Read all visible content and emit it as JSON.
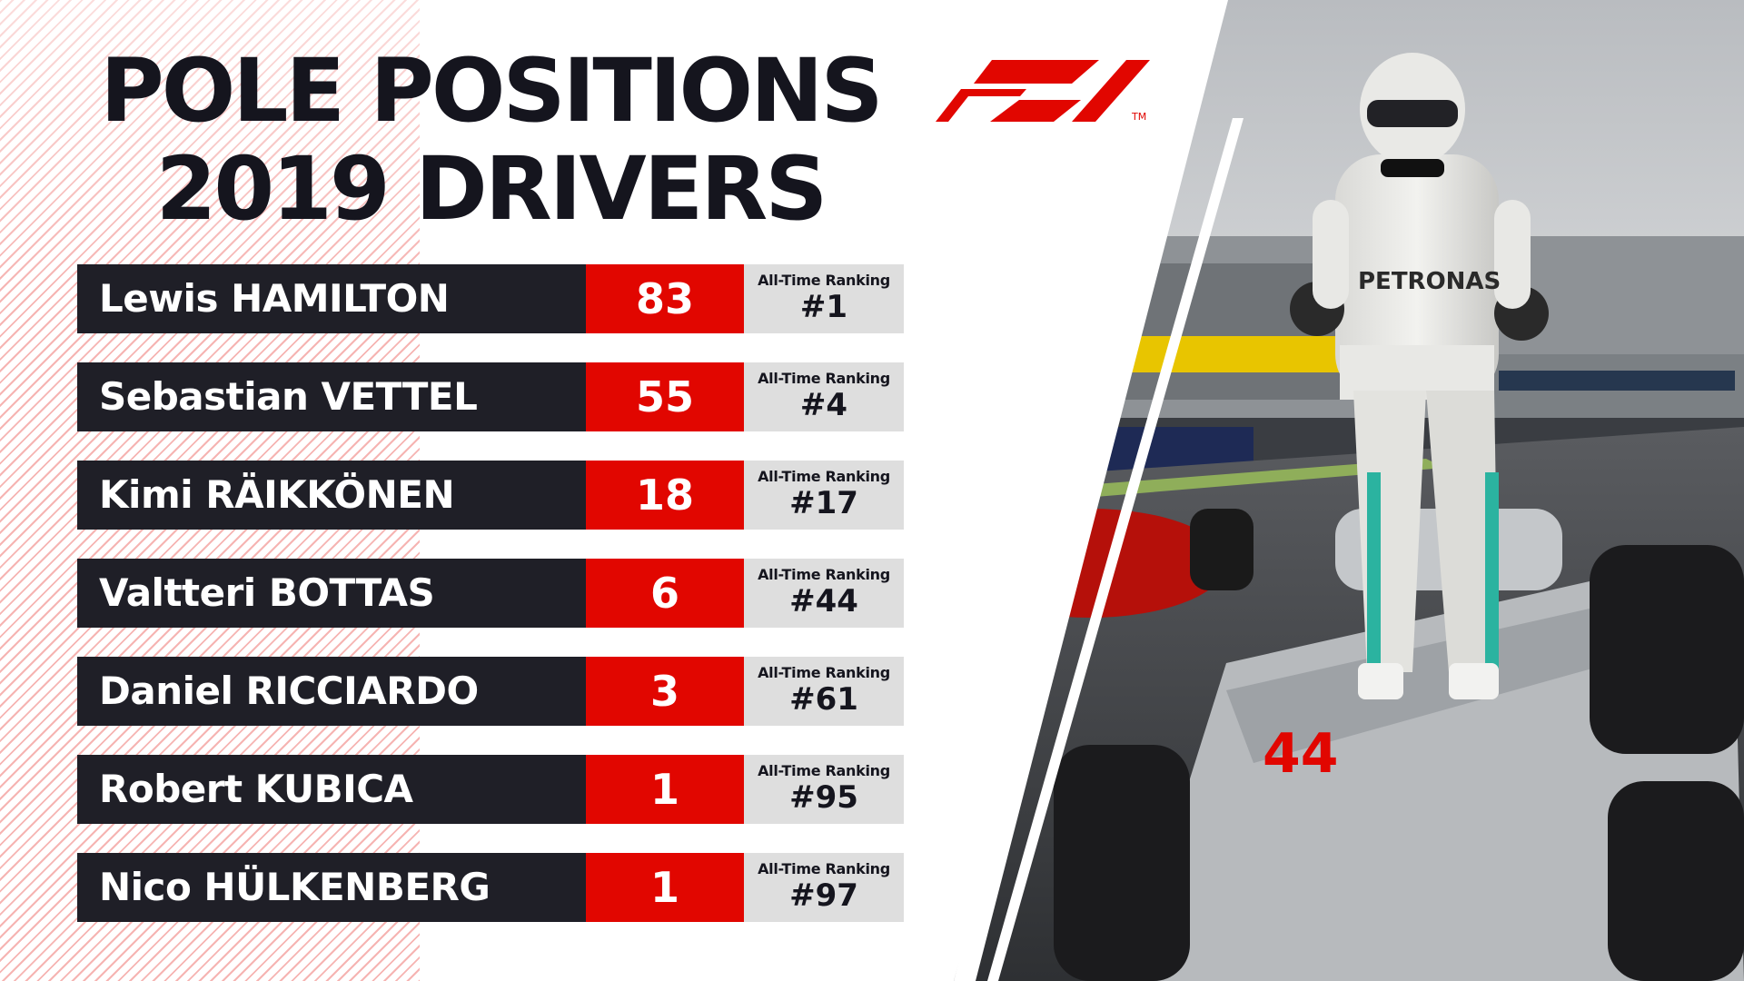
{
  "header": {
    "title_line1": "POLE POSITIONS",
    "title_line2": "2019 DRIVERS"
  },
  "logo": {
    "icon": "f1-logo-icon",
    "trademark": "TM",
    "color": "#e10600"
  },
  "table": {
    "rank_label": "All-Time Ranking",
    "rows": [
      {
        "driver": "Lewis HAMILTON",
        "poles": "83",
        "ranking": "#1"
      },
      {
        "driver": "Sebastian VETTEL",
        "poles": "55",
        "ranking": "#4"
      },
      {
        "driver": "Kimi RÄIKKÖNEN",
        "poles": "18",
        "ranking": "#17"
      },
      {
        "driver": "Valtteri BOTTAS",
        "poles": "6",
        "ranking": "#44"
      },
      {
        "driver": "Daniel RICCIARDO",
        "poles": "3",
        "ranking": "#61"
      },
      {
        "driver": "Robert KUBICA",
        "poles": "1",
        "ranking": "#95"
      },
      {
        "driver": "Nico HÜLKENBERG",
        "poles": "1",
        "ranking": "#97"
      }
    ]
  },
  "photo": {
    "car_number": "44",
    "sponsor_text": "PETRONAS"
  },
  "colors": {
    "red": "#e10600",
    "dark": "#1f1f27",
    "grey": "#dedede"
  }
}
